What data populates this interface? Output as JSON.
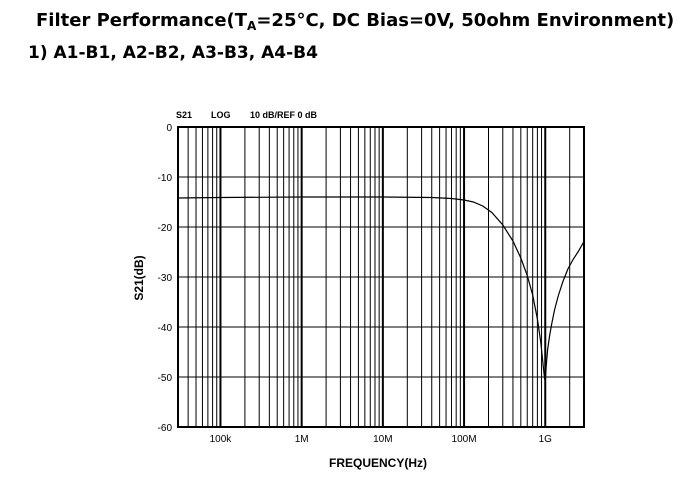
{
  "heading": {
    "prefix": "Filter Performance(T",
    "subscript": "A",
    "suffix": "=25°C, DC Bias=0V, 50ohm Environment)"
  },
  "subheading": "1) A1-B1, A2-B2, A3-B3, A4-B4",
  "chart_data": {
    "type": "line",
    "header": {
      "trace": "S21",
      "format": "LOG",
      "scale": "10 dB/REF 0 dB"
    },
    "xlabel": "FREQUENCY(Hz)",
    "ylabel": "S21(dB)",
    "x_scale": "log",
    "xlim": [
      30000,
      3000000000
    ],
    "ylim": [
      -60,
      0
    ],
    "xticks": [
      100000,
      1000000,
      10000000,
      100000000,
      1000000000
    ],
    "xtick_labels": [
      "100k",
      "1M",
      "10M",
      "100M",
      "1G"
    ],
    "yticks": [
      0,
      -10,
      -20,
      -30,
      -40,
      -50,
      -60
    ],
    "ytick_labels": [
      "0",
      "-10",
      "-20",
      "-30",
      "-40",
      "-50",
      "-60"
    ],
    "grid": true,
    "series": [
      {
        "color": "#000000",
        "x": [
          30000,
          100000,
          1000000,
          10000000,
          40000000,
          70000000,
          100000000,
          130000000,
          170000000,
          220000000,
          300000000,
          400000000,
          500000000,
          600000000,
          700000000,
          800000000,
          880000000,
          940000000,
          980000000,
          1000000000,
          1030000000,
          1070000000,
          1130000000,
          1200000000,
          1300000000,
          1450000000,
          1650000000,
          1900000000,
          2200000000,
          2550000000,
          3000000000
        ],
        "y": [
          -14.2,
          -14.1,
          -14.0,
          -14.0,
          -14.1,
          -14.3,
          -14.6,
          -15.0,
          -15.8,
          -17.1,
          -19.6,
          -22.8,
          -26.2,
          -29.7,
          -33.6,
          -38.4,
          -43.0,
          -47.5,
          -50.3,
          -50.8,
          -47.6,
          -44.5,
          -41.8,
          -39.4,
          -36.6,
          -33.7,
          -30.9,
          -28.4,
          -26.5,
          -24.9,
          -22.9
        ]
      }
    ]
  }
}
